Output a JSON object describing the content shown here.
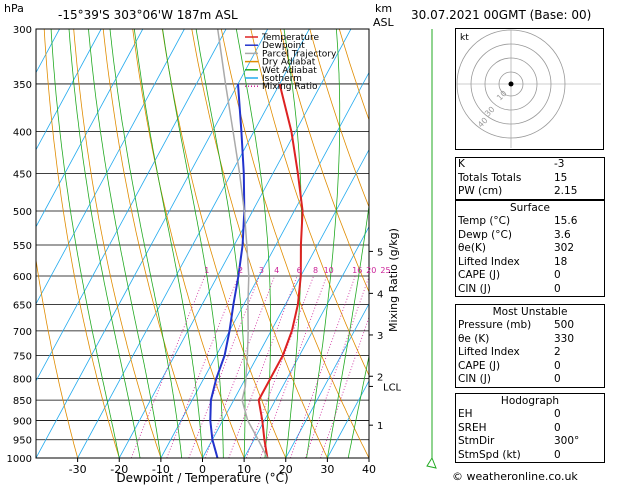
{
  "header": {
    "hpa_label": "hPa",
    "location": "-15°39'S 303°06'W 187m ASL",
    "km_label": "km",
    "asl_label": "ASL",
    "datetime": "30.07.2021 00GMT (Base: 00)"
  },
  "legend": [
    {
      "label": "Temperature",
      "color": "#dd2222",
      "style": "solid"
    },
    {
      "label": "Dewpoint",
      "color": "#2233cc",
      "style": "solid"
    },
    {
      "label": "Parcel Trajectory",
      "color": "#aaaaaa",
      "style": "solid"
    },
    {
      "label": "Dry Adiabat",
      "color": "#e08c00",
      "style": "solid"
    },
    {
      "label": "Wet Adiabat",
      "color": "#22aa22",
      "style": "solid"
    },
    {
      "label": "Isotherm",
      "color": "#22aaee",
      "style": "solid"
    },
    {
      "label": "Mixing Ratio",
      "color": "#cc2299",
      "style": "dotted"
    }
  ],
  "chart_data": {
    "type": "line",
    "xlabel": "Dewpoint / Temperature (°C)",
    "ylabel": "",
    "y2label": "Mixing Ratio (g/kg)",
    "x_ticks": [
      -30,
      -20,
      -10,
      0,
      10,
      20,
      30,
      40
    ],
    "pressure_levels": [
      300,
      350,
      400,
      450,
      500,
      550,
      600,
      650,
      700,
      750,
      800,
      850,
      900,
      950,
      1000
    ],
    "xlim": [
      -40,
      40
    ],
    "ylim": [
      1000,
      300
    ],
    "km_ticks": [
      {
        "label": "1",
        "p": 912
      },
      {
        "label": "2",
        "p": 795
      },
      {
        "label": "3",
        "p": 708
      },
      {
        "label": "4",
        "p": 630
      },
      {
        "label": "5",
        "p": 560
      }
    ],
    "lcl": {
      "label": "LCL",
      "p": 818
    },
    "mixing_ratio_labels": [
      "1",
      "2",
      "3",
      "4",
      "6",
      "8",
      "10",
      "16",
      "20",
      "25"
    ],
    "mixing_ratio_values": [
      1,
      2,
      3,
      4,
      6,
      8,
      10,
      16,
      20,
      25
    ],
    "series": [
      {
        "name": "Temperature",
        "color": "#dd2222",
        "p": [
          1000,
          950,
          900,
          850,
          800,
          750,
          700,
          650,
          600,
          550,
          500,
          450,
          400,
          350
        ],
        "t": [
          15.6,
          12.5,
          9.5,
          6.0,
          6.0,
          6.0,
          5.0,
          3.0,
          0.0,
          -4.0,
          -8.0,
          -14.0,
          -21.0,
          -30.0
        ]
      },
      {
        "name": "Dewpoint",
        "color": "#2233cc",
        "p": [
          1000,
          950,
          900,
          850,
          800,
          750,
          700,
          650,
          600,
          550,
          500,
          450,
          400,
          350
        ],
        "t": [
          3.6,
          0.0,
          -3.0,
          -5.5,
          -7.0,
          -8.0,
          -10.0,
          -12.5,
          -15.0,
          -18.0,
          -22.0,
          -27.0,
          -33.0,
          -40.0
        ]
      },
      {
        "name": "Parcel Trajectory",
        "color": "#aaaaaa",
        "p": [
          1000,
          950,
          900,
          850,
          818,
          750,
          700,
          650,
          600,
          550,
          500,
          450,
          400,
          350,
          300
        ],
        "t": [
          15.6,
          11.0,
          6.0,
          2.0,
          1.0,
          -2.5,
          -5.5,
          -9.0,
          -12.5,
          -17.0,
          -22.0,
          -28.0,
          -35.0,
          -43.0,
          -52.0
        ]
      }
    ]
  },
  "indices": {
    "rows": [
      {
        "label": "K",
        "value": "-3"
      },
      {
        "label": "Totals Totals",
        "value": "15"
      },
      {
        "label": "PW (cm)",
        "value": "2.15"
      }
    ]
  },
  "surface": {
    "title": "Surface",
    "rows": [
      {
        "label": "Temp (°C)",
        "value": "15.6"
      },
      {
        "label": "Dewp (°C)",
        "value": "3.6"
      },
      {
        "label": "θe(K)",
        "value": "302"
      },
      {
        "label": "Lifted Index",
        "value": "18"
      },
      {
        "label": "CAPE (J)",
        "value": "0"
      },
      {
        "label": "CIN (J)",
        "value": "0"
      }
    ]
  },
  "most_unstable": {
    "title": "Most Unstable",
    "rows": [
      {
        "label": "Pressure (mb)",
        "value": "500"
      },
      {
        "label": "θe (K)",
        "value": "330"
      },
      {
        "label": "Lifted Index",
        "value": "2"
      },
      {
        "label": "CAPE (J)",
        "value": "0"
      },
      {
        "label": "CIN (J)",
        "value": "0"
      }
    ]
  },
  "hodograph": {
    "kt_label": "kt",
    "ring_labels": [
      "40",
      "30",
      "10"
    ],
    "title": "Hodograph",
    "rows": [
      {
        "label": "EH",
        "value": "0"
      },
      {
        "label": "SREH",
        "value": "0"
      },
      {
        "label": "StmDir",
        "value": "300°"
      },
      {
        "label": "StmSpd (kt)",
        "value": "0"
      }
    ]
  },
  "copyright": "© weatheronline.co.uk"
}
